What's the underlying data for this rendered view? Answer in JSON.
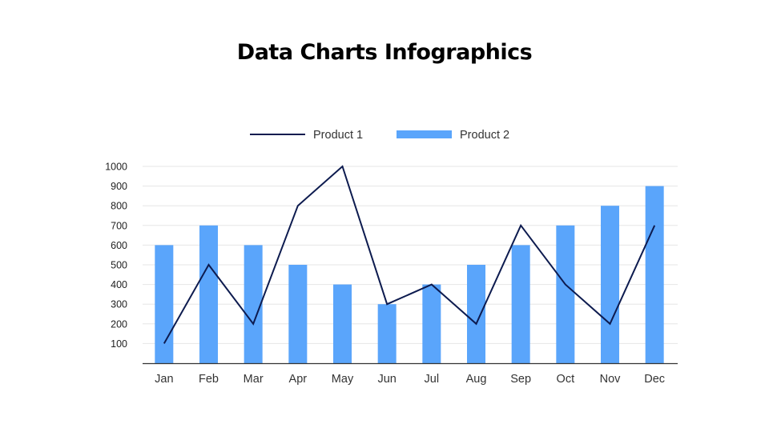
{
  "chart_data": {
    "type": "bar",
    "title": "Data Charts Infographics",
    "categories": [
      "Jan",
      "Feb",
      "Mar",
      "Apr",
      "May",
      "Jun",
      "Jul",
      "Aug",
      "Sep",
      "Oct",
      "Nov",
      "Dec"
    ],
    "series": [
      {
        "name": "Product 1",
        "type": "line",
        "color": "#0d1b4f",
        "values": [
          100,
          500,
          200,
          800,
          1000,
          300,
          400,
          200,
          700,
          400,
          200,
          700
        ]
      },
      {
        "name": "Product 2",
        "type": "bar",
        "color": "#5aa5fb",
        "values": [
          600,
          700,
          600,
          500,
          400,
          300,
          400,
          500,
          600,
          700,
          800,
          900
        ]
      }
    ],
    "yticks": [
      "100",
      "200",
      "300",
      "400",
      "500",
      "600",
      "700",
      "800",
      "900",
      "1000"
    ],
    "ylim": [
      0,
      1000
    ],
    "xlabel": "",
    "ylabel": "",
    "grid": true,
    "legend": "top-center"
  }
}
